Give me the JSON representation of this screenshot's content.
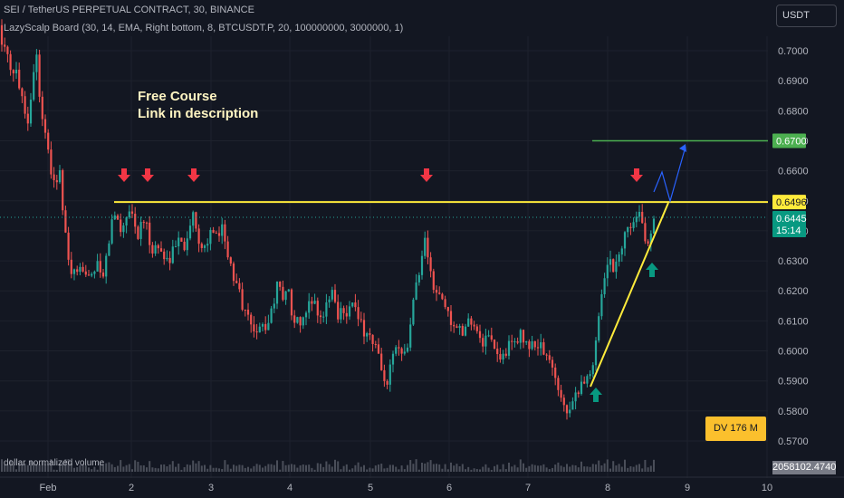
{
  "header": {
    "title": "SEI / TetherUS PERPETUAL CONTRACT, 30, BINANCE",
    "indicator": "LazyScalp Board (30, 14, EMA, Right bottom, 8, BTCUSDT.P, 20, 100000000, 3000000, 1)"
  },
  "currency_button": "USDT",
  "promo": {
    "line1": "Free Course",
    "line2": "Link in description"
  },
  "dv_badge": "DV 176 M",
  "volume": {
    "label": "dollar normalized volume",
    "value": "2058102.4740"
  },
  "price_labels": {
    "target": "0.6700",
    "resistance": "0.6496",
    "last": "0.6445",
    "countdown": "15:14"
  },
  "colors": {
    "background": "#131722",
    "up": "#26a69a",
    "down": "#ef5350",
    "resistance": "#ffeb3b",
    "target": "#4caf50",
    "projection": "#2962ff",
    "up_arrow": "#089981",
    "down_arrow": "#f23645"
  },
  "chart_data": {
    "type": "candlestick",
    "symbol": "SEI / TetherUS PERPETUAL CONTRACT",
    "timeframe": "30",
    "y_axis": {
      "ticks": [
        "0.7000",
        "0.6900",
        "0.6800",
        "0.6700",
        "0.6600",
        "0.6500",
        "0.6400",
        "0.6300",
        "0.6200",
        "0.6100",
        "0.6000",
        "0.5900",
        "0.5800",
        "0.5700"
      ],
      "ylim": [
        0.5665,
        0.7105
      ]
    },
    "x_axis": {
      "ticks": [
        "Feb",
        "2",
        "3",
        "4",
        "5",
        "6",
        "7",
        "8",
        "9",
        "10"
      ]
    },
    "path": [
      [
        0,
        0.7085
      ],
      [
        4,
        0.7
      ],
      [
        8,
        0.698
      ],
      [
        13,
        0.69
      ],
      [
        18,
        0.694
      ],
      [
        24,
        0.686
      ],
      [
        30,
        0.675
      ],
      [
        36,
        0.69
      ],
      [
        40,
        0.7
      ],
      [
        44,
        0.685
      ],
      [
        48,
        0.675
      ],
      [
        52,
        0.668
      ],
      [
        56,
        0.66
      ],
      [
        60,
        0.656
      ],
      [
        66,
        0.659
      ],
      [
        70,
        0.645
      ],
      [
        74,
        0.632
      ],
      [
        79,
        0.626
      ],
      [
        85,
        0.624
      ],
      [
        92,
        0.628
      ],
      [
        100,
        0.626
      ],
      [
        108,
        0.628
      ],
      [
        114,
        0.624
      ],
      [
        118,
        0.632
      ],
      [
        124,
        0.644
      ],
      [
        130,
        0.645
      ],
      [
        134,
        0.639
      ],
      [
        138,
        0.645
      ],
      [
        144,
        0.648
      ],
      [
        148,
        0.643
      ],
      [
        152,
        0.638
      ],
      [
        158,
        0.644
      ],
      [
        164,
        0.639
      ],
      [
        168,
        0.633
      ],
      [
        174,
        0.635
      ],
      [
        180,
        0.632
      ],
      [
        186,
        0.63
      ],
      [
        190,
        0.633
      ],
      [
        196,
        0.636
      ],
      [
        200,
        0.638
      ],
      [
        206,
        0.634
      ],
      [
        210,
        0.643
      ],
      [
        215,
        0.645
      ],
      [
        220,
        0.637
      ],
      [
        226,
        0.635
      ],
      [
        232,
        0.639
      ],
      [
        238,
        0.637
      ],
      [
        244,
        0.642
      ],
      [
        248,
        0.639
      ],
      [
        253,
        0.63
      ],
      [
        258,
        0.623
      ],
      [
        264,
        0.62
      ],
      [
        268,
        0.615
      ],
      [
        274,
        0.611
      ],
      [
        280,
        0.608
      ],
      [
        286,
        0.607
      ],
      [
        292,
        0.608
      ],
      [
        297,
        0.611
      ],
      [
        302,
        0.616
      ],
      [
        308,
        0.624
      ],
      [
        313,
        0.618
      ],
      [
        318,
        0.62
      ],
      [
        322,
        0.614
      ],
      [
        326,
        0.611
      ],
      [
        332,
        0.607
      ],
      [
        338,
        0.612
      ],
      [
        344,
        0.618
      ],
      [
        350,
        0.614
      ],
      [
        356,
        0.61
      ],
      [
        362,
        0.618
      ],
      [
        368,
        0.62
      ],
      [
        372,
        0.612
      ],
      [
        378,
        0.615
      ],
      [
        384,
        0.613
      ],
      [
        390,
        0.617
      ],
      [
        396,
        0.609
      ],
      [
        402,
        0.607
      ],
      [
        408,
        0.605
      ],
      [
        414,
        0.602
      ],
      [
        418,
        0.598
      ],
      [
        422,
        0.591
      ],
      [
        427,
        0.586
      ],
      [
        432,
        0.596
      ],
      [
        438,
        0.602
      ],
      [
        444,
        0.601
      ],
      [
        450,
        0.603
      ],
      [
        454,
        0.611
      ],
      [
        460,
        0.624
      ],
      [
        465,
        0.63
      ],
      [
        470,
        0.639
      ],
      [
        474,
        0.628
      ],
      [
        478,
        0.621
      ],
      [
        484,
        0.618
      ],
      [
        490,
        0.616
      ],
      [
        496,
        0.612
      ],
      [
        502,
        0.606
      ],
      [
        508,
        0.608
      ],
      [
        514,
        0.606
      ],
      [
        520,
        0.611
      ],
      [
        526,
        0.606
      ],
      [
        532,
        0.602
      ],
      [
        538,
        0.604
      ],
      [
        544,
        0.601
      ],
      [
        548,
        0.599
      ],
      [
        554,
        0.597
      ],
      [
        558,
        0.6
      ],
      [
        564,
        0.602
      ],
      [
        568,
        0.603
      ],
      [
        574,
        0.605
      ],
      [
        580,
        0.604
      ],
      [
        586,
        0.601
      ],
      [
        592,
        0.603
      ],
      [
        598,
        0.601
      ],
      [
        604,
        0.598
      ],
      [
        608,
        0.596
      ],
      [
        614,
        0.589
      ],
      [
        620,
        0.585
      ],
      [
        626,
        0.581
      ],
      [
        631,
        0.583
      ],
      [
        636,
        0.586
      ],
      [
        642,
        0.59
      ],
      [
        648,
        0.59
      ],
      [
        654,
        0.592
      ],
      [
        660,
        0.611
      ],
      [
        664,
        0.619
      ],
      [
        668,
        0.626
      ],
      [
        673,
        0.631
      ],
      [
        678,
        0.627
      ],
      [
        682,
        0.634
      ],
      [
        686,
        0.633
      ],
      [
        690,
        0.639
      ],
      [
        695,
        0.643
      ],
      [
        700,
        0.642
      ],
      [
        705,
        0.645
      ],
      [
        710,
        0.641
      ],
      [
        714,
        0.637
      ],
      [
        718,
        0.638
      ],
      [
        722,
        0.646
      ],
      [
        724,
        0.6445
      ]
    ]
  },
  "markers": {
    "down_x": [
      137,
      163,
      214,
      471,
      703
    ],
    "up_x": [
      658,
      720
    ]
  }
}
